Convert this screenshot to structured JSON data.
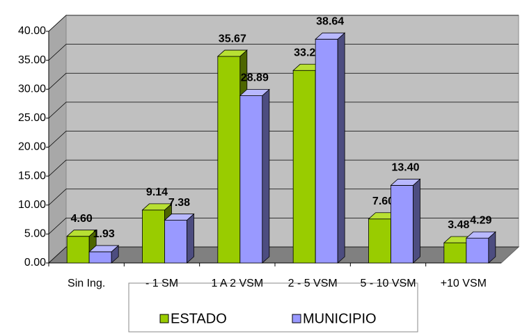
{
  "chart_data": {
    "type": "bar3d",
    "categories": [
      "Sin Ing.",
      "- 1 SM",
      "1 A 2 VSM",
      "2 - 5 VSM",
      "5 - 10 VSM",
      "+10 VSM"
    ],
    "series": [
      {
        "name": "ESTADO",
        "color": "#99cc00",
        "values": [
          4.6,
          9.14,
          35.67,
          33.24,
          7.6,
          3.48
        ],
        "value_labels": [
          "4.60",
          "9.14",
          "35.67",
          "33.24",
          "7.60",
          "3.48"
        ]
      },
      {
        "name": "MUNICIPIO",
        "color": "#9999ff",
        "values": [
          1.93,
          7.38,
          28.89,
          38.64,
          13.4,
          4.29
        ],
        "value_labels": [
          "1.93",
          "7.38",
          "28.89",
          "38.64",
          "13.40",
          "4.29"
        ]
      }
    ],
    "ylim": [
      0,
      40
    ],
    "yticks": [
      {
        "value": 0,
        "label": "0.00"
      },
      {
        "value": 5,
        "label": "5.00"
      },
      {
        "value": 10,
        "label": "10.00"
      },
      {
        "value": 15,
        "label": "15.00"
      },
      {
        "value": 20,
        "label": "20.00"
      },
      {
        "value": 25,
        "label": "25.00"
      },
      {
        "value": 30,
        "label": "30.00"
      },
      {
        "value": 35,
        "label": "35.00"
      },
      {
        "value": 40,
        "label": "40.00"
      }
    ],
    "grid": true,
    "legend": "bottom"
  }
}
